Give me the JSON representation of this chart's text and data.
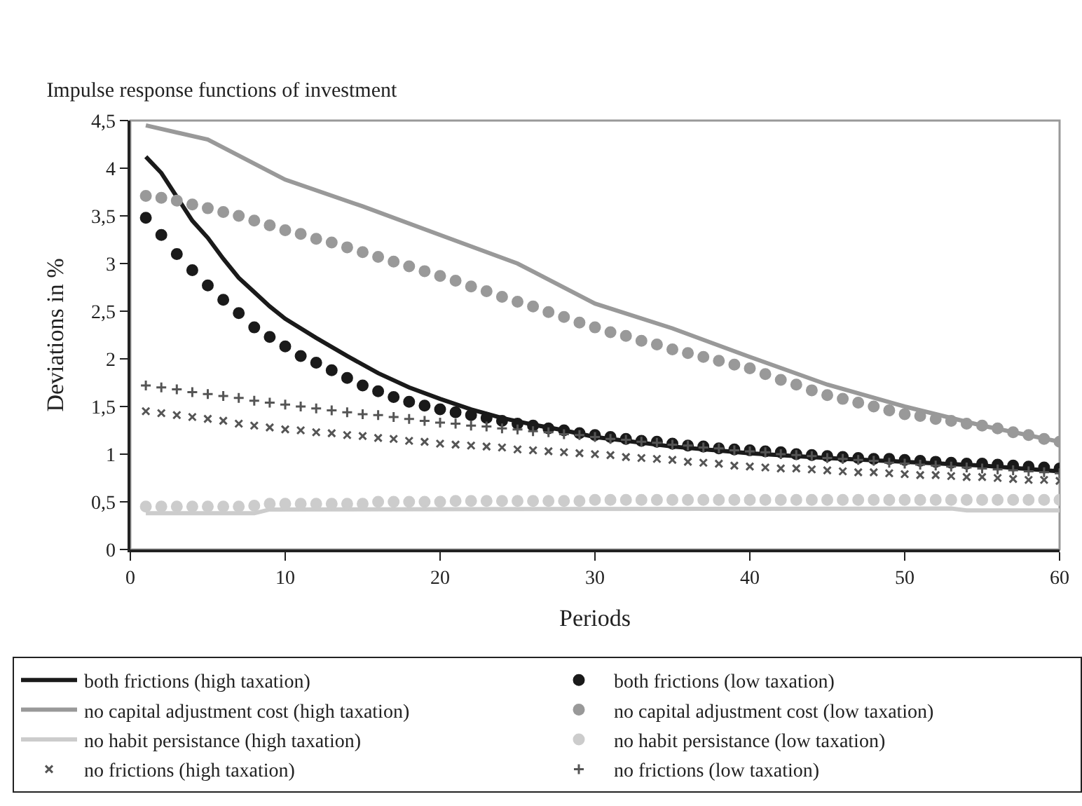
{
  "chart_data": {
    "type": "line",
    "title": "Impulse response functions of investment",
    "xlabel": "Periods",
    "ylabel": "Deviations in %",
    "xlim": [
      0,
      60
    ],
    "xticks": [
      0,
      10,
      20,
      30,
      40,
      50,
      60
    ],
    "ylim": [
      0,
      4.5
    ],
    "yticks": [
      0,
      {
        "value": 0.5,
        "label": "0,5"
      },
      1,
      {
        "value": 1.5,
        "label": "1,5"
      },
      2,
      {
        "value": 2.5,
        "label": "2,5"
      },
      3,
      {
        "value": 3.5,
        "label": "3,5"
      },
      4,
      {
        "value": 4.5,
        "label": "4,5"
      }
    ],
    "grid": false,
    "legend": "bottom",
    "series": [
      {
        "name": "both frictions (high taxation)",
        "type": "line",
        "color": "#1a1a1a",
        "marker": "none",
        "x": [
          1,
          2,
          3,
          4,
          5,
          6,
          7,
          8,
          9,
          10,
          12,
          14,
          16,
          18,
          20,
          22,
          24,
          26,
          28,
          30,
          35,
          40,
          45,
          50,
          55,
          60
        ],
        "values": [
          4.12,
          3.95,
          3.7,
          3.45,
          3.27,
          3.05,
          2.85,
          2.7,
          2.55,
          2.42,
          2.22,
          2.03,
          1.85,
          1.7,
          1.58,
          1.47,
          1.38,
          1.31,
          1.25,
          1.18,
          1.08,
          1.01,
          0.96,
          0.92,
          0.88,
          0.82
        ]
      },
      {
        "name": "both frictions (low taxation)",
        "type": "scatter",
        "color": "#1a1a1a",
        "marker": "circle",
        "x": [
          1,
          2,
          3,
          4,
          5,
          6,
          7,
          8,
          9,
          10,
          11,
          12,
          13,
          14,
          15,
          16,
          17,
          18,
          19,
          20,
          21,
          22,
          23,
          24,
          25,
          26,
          27,
          28,
          29,
          30,
          31,
          32,
          33,
          34,
          35,
          36,
          37,
          38,
          39,
          40,
          41,
          42,
          43,
          44,
          45,
          46,
          47,
          48,
          49,
          50,
          51,
          52,
          53,
          54,
          55,
          56,
          57,
          58,
          59,
          60
        ],
        "values": [
          3.48,
          3.3,
          3.1,
          2.93,
          2.77,
          2.62,
          2.48,
          2.33,
          2.23,
          2.13,
          2.03,
          1.96,
          1.88,
          1.8,
          1.72,
          1.66,
          1.6,
          1.55,
          1.51,
          1.47,
          1.44,
          1.41,
          1.38,
          1.35,
          1.32,
          1.3,
          1.27,
          1.25,
          1.22,
          1.2,
          1.18,
          1.16,
          1.14,
          1.13,
          1.11,
          1.09,
          1.08,
          1.06,
          1.05,
          1.04,
          1.03,
          1.02,
          1.0,
          0.99,
          0.98,
          0.97,
          0.96,
          0.95,
          0.95,
          0.94,
          0.93,
          0.92,
          0.91,
          0.9,
          0.9,
          0.89,
          0.88,
          0.87,
          0.86,
          0.85
        ]
      },
      {
        "name": "no capital adjustment cost (high taxation)",
        "type": "line",
        "color": "#999999",
        "marker": "none",
        "x": [
          1,
          5,
          10,
          15,
          20,
          25,
          30,
          35,
          40,
          45,
          50,
          55,
          60
        ],
        "values": [
          4.45,
          4.3,
          3.88,
          3.6,
          3.3,
          3.0,
          2.58,
          2.32,
          2.02,
          1.73,
          1.5,
          1.3,
          1.13
        ]
      },
      {
        "name": "no capital adjustment cost (low taxation)",
        "type": "scatter",
        "color": "#999999",
        "marker": "circle",
        "x": [
          1,
          2,
          3,
          4,
          5,
          6,
          7,
          8,
          9,
          10,
          11,
          12,
          13,
          14,
          15,
          16,
          17,
          18,
          19,
          20,
          21,
          22,
          23,
          24,
          25,
          26,
          27,
          28,
          29,
          30,
          31,
          32,
          33,
          34,
          35,
          36,
          37,
          38,
          39,
          40,
          41,
          42,
          43,
          44,
          45,
          46,
          47,
          48,
          49,
          50,
          51,
          52,
          53,
          54,
          55,
          56,
          57,
          58,
          59,
          60
        ],
        "values": [
          3.71,
          3.69,
          3.66,
          3.62,
          3.58,
          3.54,
          3.5,
          3.45,
          3.4,
          3.35,
          3.31,
          3.26,
          3.22,
          3.17,
          3.12,
          3.07,
          3.02,
          2.97,
          2.92,
          2.87,
          2.82,
          2.76,
          2.71,
          2.65,
          2.6,
          2.55,
          2.49,
          2.44,
          2.38,
          2.33,
          2.28,
          2.24,
          2.19,
          2.15,
          2.1,
          2.06,
          2.02,
          1.98,
          1.94,
          1.9,
          1.84,
          1.78,
          1.73,
          1.67,
          1.62,
          1.58,
          1.54,
          1.5,
          1.46,
          1.42,
          1.4,
          1.37,
          1.35,
          1.32,
          1.3,
          1.27,
          1.23,
          1.2,
          1.16,
          1.13
        ]
      },
      {
        "name": "no habit persistance (high taxation)",
        "type": "line",
        "color": "#cccccc",
        "marker": "none",
        "x": [
          1,
          8,
          9,
          53,
          54,
          60
        ],
        "values": [
          0.38,
          0.38,
          0.42,
          0.43,
          0.41,
          0.41
        ]
      },
      {
        "name": "no habit persistance (low taxation)",
        "type": "scatter",
        "color": "#cccccc",
        "marker": "circle",
        "x": [
          1,
          2,
          3,
          4,
          5,
          6,
          7,
          8,
          9,
          10,
          11,
          12,
          13,
          14,
          15,
          16,
          17,
          18,
          19,
          20,
          21,
          22,
          23,
          24,
          25,
          26,
          27,
          28,
          29,
          30,
          31,
          32,
          33,
          34,
          35,
          36,
          37,
          38,
          39,
          40,
          41,
          42,
          43,
          44,
          45,
          46,
          47,
          48,
          49,
          50,
          51,
          52,
          53,
          54,
          55,
          56,
          57,
          58,
          59,
          60
        ],
        "values": [
          0.45,
          0.45,
          0.45,
          0.45,
          0.45,
          0.45,
          0.45,
          0.46,
          0.48,
          0.48,
          0.48,
          0.48,
          0.48,
          0.48,
          0.48,
          0.5,
          0.5,
          0.5,
          0.5,
          0.5,
          0.51,
          0.51,
          0.51,
          0.51,
          0.51,
          0.51,
          0.51,
          0.51,
          0.51,
          0.52,
          0.52,
          0.52,
          0.52,
          0.52,
          0.52,
          0.52,
          0.52,
          0.52,
          0.52,
          0.52,
          0.52,
          0.52,
          0.52,
          0.52,
          0.52,
          0.52,
          0.52,
          0.52,
          0.52,
          0.52,
          0.52,
          0.52,
          0.52,
          0.52,
          0.52,
          0.52,
          0.52,
          0.52,
          0.52,
          0.52
        ]
      },
      {
        "name": "no frictions (high taxation)",
        "type": "scatter",
        "color": "#555555",
        "marker": "cross",
        "x": [
          1,
          2,
          3,
          4,
          5,
          6,
          7,
          8,
          9,
          10,
          11,
          12,
          13,
          14,
          15,
          16,
          17,
          18,
          19,
          20,
          21,
          22,
          23,
          24,
          25,
          26,
          27,
          28,
          29,
          30,
          31,
          32,
          33,
          34,
          35,
          36,
          37,
          38,
          39,
          40,
          41,
          42,
          43,
          44,
          45,
          46,
          47,
          48,
          49,
          50,
          51,
          52,
          53,
          54,
          55,
          56,
          57,
          58,
          59,
          60
        ],
        "values": [
          1.45,
          1.43,
          1.41,
          1.39,
          1.37,
          1.35,
          1.32,
          1.3,
          1.28,
          1.26,
          1.25,
          1.23,
          1.22,
          1.2,
          1.19,
          1.17,
          1.16,
          1.14,
          1.13,
          1.11,
          1.1,
          1.09,
          1.08,
          1.07,
          1.05,
          1.04,
          1.03,
          1.02,
          1.01,
          1.0,
          0.99,
          0.97,
          0.96,
          0.95,
          0.94,
          0.92,
          0.91,
          0.9,
          0.88,
          0.87,
          0.86,
          0.85,
          0.85,
          0.84,
          0.83,
          0.82,
          0.81,
          0.81,
          0.8,
          0.79,
          0.78,
          0.78,
          0.77,
          0.76,
          0.76,
          0.75,
          0.74,
          0.73,
          0.73,
          0.72
        ]
      },
      {
        "name": "no frictions (low taxation)",
        "type": "scatter",
        "color": "#555555",
        "marker": "plus",
        "x": [
          1,
          2,
          3,
          4,
          5,
          6,
          7,
          8,
          9,
          10,
          11,
          12,
          13,
          14,
          15,
          16,
          17,
          18,
          19,
          20,
          21,
          22,
          23,
          24,
          25,
          26,
          27,
          28,
          29,
          30,
          31,
          32,
          33,
          34,
          35,
          36,
          37,
          38,
          39,
          40,
          41,
          42,
          43,
          44,
          45,
          46,
          47,
          48,
          49,
          50,
          51,
          52,
          53,
          54,
          55,
          56,
          57,
          58,
          59,
          60
        ],
        "values": [
          1.72,
          1.7,
          1.68,
          1.65,
          1.63,
          1.61,
          1.59,
          1.56,
          1.54,
          1.52,
          1.5,
          1.48,
          1.46,
          1.44,
          1.42,
          1.41,
          1.39,
          1.37,
          1.35,
          1.33,
          1.32,
          1.3,
          1.29,
          1.27,
          1.26,
          1.24,
          1.23,
          1.21,
          1.2,
          1.18,
          1.16,
          1.15,
          1.13,
          1.12,
          1.1,
          1.09,
          1.07,
          1.06,
          1.04,
          1.03,
          1.02,
          1.0,
          0.99,
          0.98,
          0.96,
          0.95,
          0.94,
          0.93,
          0.91,
          0.9,
          0.89,
          0.88,
          0.87,
          0.86,
          0.85,
          0.84,
          0.83,
          0.82,
          0.81,
          0.8
        ]
      }
    ]
  }
}
